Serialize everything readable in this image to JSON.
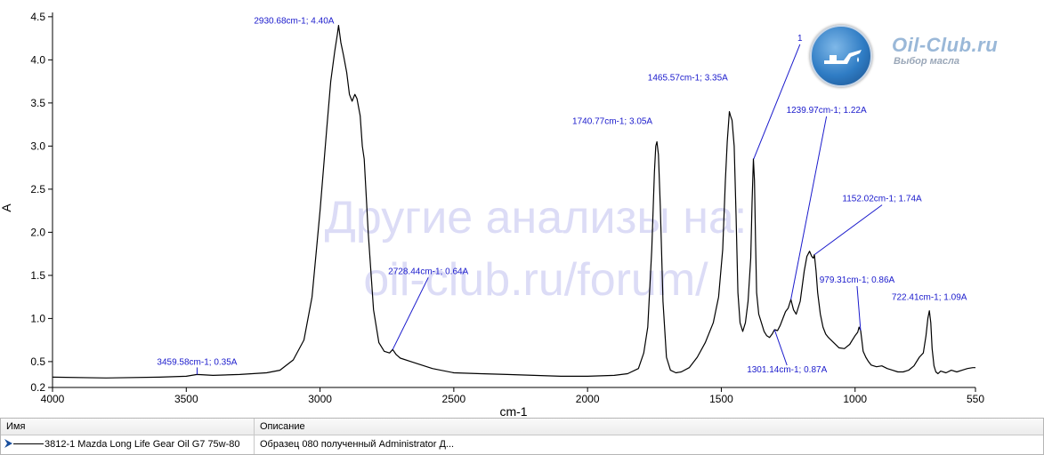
{
  "chart_data": {
    "type": "line",
    "xlabel": "cm-1",
    "ylabel": "A",
    "xlim": [
      4000,
      550
    ],
    "ylim": [
      0.2,
      4.55
    ],
    "x_ticks": [
      4000,
      3500,
      3000,
      2500,
      2000,
      1500,
      1000,
      550
    ],
    "x_tick_labels": [
      "4000",
      "3500",
      "3000",
      "2500",
      "2000",
      "1500",
      "1000",
      "550"
    ],
    "y_ticks": [
      0.2,
      0.5,
      1.0,
      1.5,
      2.0,
      2.5,
      3.0,
      3.5,
      4.0,
      4.5
    ],
    "y_tick_labels": [
      "0.2",
      "0.5",
      "1.0",
      "1.5",
      "2.0",
      "2.5",
      "3.0",
      "3.5",
      "4.0",
      "4.5"
    ],
    "series": [
      {
        "name": "3812-1 Mazda Long Life Gear Oil G7 75w-80",
        "x": [
          4000,
          3800,
          3600,
          3500,
          3459.58,
          3400,
          3300,
          3200,
          3150,
          3100,
          3060,
          3030,
          3000,
          2975,
          2960,
          2945,
          2935,
          2930.68,
          2922,
          2912,
          2900,
          2890,
          2880,
          2870,
          2862,
          2850,
          2842,
          2835,
          2820,
          2800,
          2780,
          2760,
          2740,
          2728.44,
          2715,
          2700,
          2660,
          2620,
          2580,
          2500,
          2400,
          2300,
          2200,
          2100,
          2000,
          1900,
          1850,
          1810,
          1790,
          1775,
          1760,
          1750,
          1745,
          1740.77,
          1735,
          1728,
          1718,
          1705,
          1690,
          1670,
          1650,
          1620,
          1590,
          1560,
          1530,
          1510,
          1495,
          1485,
          1478,
          1470,
          1465.57,
          1460,
          1452,
          1445,
          1438,
          1430,
          1420,
          1410,
          1400,
          1390,
          1385,
          1380,
          1376,
          1372,
          1368,
          1360,
          1350,
          1340,
          1330,
          1320,
          1310,
          1301.14,
          1290,
          1280,
          1270,
          1260,
          1250,
          1239.97,
          1230,
          1220,
          1205,
          1190,
          1180,
          1170,
          1162,
          1156,
          1152.02,
          1146,
          1140,
          1130,
          1120,
          1110,
          1100,
          1080,
          1060,
          1040,
          1020,
          1010,
          1000,
          990,
          985,
          979.31,
          975,
          970,
          960,
          950,
          940,
          920,
          900,
          880,
          860,
          840,
          820,
          800,
          780,
          760,
          745,
          735,
          728,
          722.41,
          717,
          712,
          705,
          698,
          690,
          680,
          660,
          640,
          620,
          600,
          580,
          560,
          550
        ],
        "values": [
          0.32,
          0.31,
          0.32,
          0.33,
          0.35,
          0.34,
          0.35,
          0.37,
          0.4,
          0.52,
          0.75,
          1.25,
          2.25,
          3.2,
          3.75,
          4.1,
          4.3,
          4.4,
          4.2,
          4.05,
          3.85,
          3.6,
          3.52,
          3.6,
          3.55,
          3.35,
          3.0,
          2.85,
          2.0,
          1.1,
          0.72,
          0.62,
          0.6,
          0.64,
          0.58,
          0.54,
          0.5,
          0.46,
          0.42,
          0.37,
          0.36,
          0.35,
          0.34,
          0.33,
          0.33,
          0.34,
          0.36,
          0.42,
          0.6,
          0.9,
          1.8,
          2.7,
          3.0,
          3.05,
          2.9,
          2.3,
          1.2,
          0.55,
          0.4,
          0.37,
          0.38,
          0.43,
          0.55,
          0.72,
          0.95,
          1.25,
          1.8,
          2.6,
          3.05,
          3.4,
          3.35,
          3.3,
          3.0,
          2.2,
          1.3,
          0.95,
          0.85,
          0.95,
          1.2,
          1.7,
          2.35,
          2.85,
          2.6,
          1.9,
          1.3,
          1.05,
          0.95,
          0.85,
          0.8,
          0.78,
          0.82,
          0.87,
          0.86,
          0.92,
          1.0,
          1.08,
          1.12,
          1.22,
          1.1,
          1.05,
          1.2,
          1.55,
          1.72,
          1.78,
          1.72,
          1.7,
          1.74,
          1.55,
          1.3,
          1.05,
          0.9,
          0.82,
          0.78,
          0.72,
          0.66,
          0.65,
          0.7,
          0.75,
          0.8,
          0.84,
          0.9,
          0.86,
          0.75,
          0.62,
          0.55,
          0.5,
          0.46,
          0.44,
          0.45,
          0.42,
          0.4,
          0.38,
          0.38,
          0.4,
          0.45,
          0.55,
          0.6,
          0.8,
          1.0,
          1.09,
          0.95,
          0.65,
          0.45,
          0.38,
          0.36,
          0.39,
          0.37,
          0.4,
          0.38,
          0.4,
          0.42,
          0.43,
          0.43
        ]
      }
    ],
    "annotations": [
      {
        "x": 2930.68,
        "y": 4.4,
        "text": "2930.68cm-1; 4.40A"
      },
      {
        "x": 3459.58,
        "y": 0.35,
        "text": "3459.58cm-1; 0.35A"
      },
      {
        "x": 2728.44,
        "y": 0.64,
        "text": "2728.44cm-1; 0.64A"
      },
      {
        "x": 1740.77,
        "y": 3.05,
        "text": "1740.77cm-1; 3.05A"
      },
      {
        "x": 1465.57,
        "y": 3.35,
        "text": "1465.57cm-1; 3.35A"
      },
      {
        "x": 1379,
        "y": 2.85,
        "text": "1"
      },
      {
        "x": 1239.97,
        "y": 1.22,
        "text": "1239.97cm-1; 1.22A"
      },
      {
        "x": 1152.02,
        "y": 1.74,
        "text": "1152.02cm-1; 1.74A"
      },
      {
        "x": 979.31,
        "y": 0.86,
        "text": "979.31cm-1; 0.86A"
      },
      {
        "x": 722.41,
        "y": 1.09,
        "text": "722.41cm-1; 1.09A"
      },
      {
        "x": 1301.14,
        "y": 0.87,
        "text": "1301.14cm-1; 0.87A"
      }
    ],
    "grid": false,
    "line_color": "#000000",
    "annotation_color": "#1a1acc"
  },
  "watermark": {
    "line1": "Другие анализы на:",
    "line2": "oil-club.ru/forum/"
  },
  "brand": {
    "name": "Oil-Club.ru",
    "tagline": "Выбор масла"
  },
  "table": {
    "headers": [
      "Имя",
      "Описание"
    ],
    "rows": [
      {
        "name": "3812-1 Mazda Long Life Gear Oil G7 75w-80",
        "description": "Образец 080 полученный Administrator Д..."
      }
    ]
  }
}
